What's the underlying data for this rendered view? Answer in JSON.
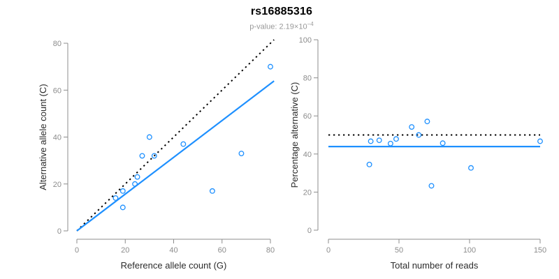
{
  "header": {
    "title": "rs16885316",
    "p_label": "p-value: 2.19×10",
    "p_exponent": "−4"
  },
  "colors": {
    "point": "#1E90FF",
    "fit_line": "#1E90FF",
    "reference_line": "#000000",
    "axis": "#8c8c8c",
    "tick_label": "#8c8c8c",
    "axis_title": "#2b2b2b",
    "title": "#000000",
    "subtitle": "#999999"
  },
  "chart_data": [
    {
      "type": "scatter",
      "name": "allele-counts-scatter",
      "xlabel": "Reference allele count (G)",
      "ylabel": "Alternative allele count (C)",
      "xlim": [
        0,
        80
      ],
      "ylim": [
        0,
        80
      ],
      "x_ticks": [
        0,
        20,
        40,
        60,
        80
      ],
      "y_ticks": [
        0,
        20,
        40,
        60,
        80
      ],
      "grid": false,
      "points": [
        [
          80,
          70
        ],
        [
          30,
          40
        ],
        [
          44,
          37
        ],
        [
          27,
          32
        ],
        [
          32,
          32
        ],
        [
          68,
          33
        ],
        [
          56,
          17
        ],
        [
          25,
          23
        ],
        [
          24,
          20
        ],
        [
          19,
          17
        ],
        [
          16,
          14
        ],
        [
          19,
          10
        ]
      ],
      "lines": [
        {
          "name": "identity-line",
          "style": "dotted",
          "color": "#000000",
          "from": [
            0,
            0
          ],
          "to": [
            81.5,
            81.5
          ]
        },
        {
          "name": "fit-line",
          "style": "solid",
          "color": "#1E90FF",
          "from": [
            0,
            0
          ],
          "to": [
            81.5,
            63.9
          ]
        }
      ]
    },
    {
      "type": "scatter",
      "name": "percentage-vs-coverage-scatter",
      "xlabel": "Total number of reads",
      "ylabel": "Percentage alternative (C)",
      "xlim": [
        0,
        150
      ],
      "ylim": [
        0,
        100
      ],
      "x_ticks": [
        0,
        50,
        100,
        150
      ],
      "y_ticks": [
        0,
        20,
        40,
        60,
        80,
        100
      ],
      "grid": false,
      "points": [
        [
          150,
          46.7
        ],
        [
          70,
          57.1
        ],
        [
          81,
          45.7
        ],
        [
          59,
          54.2
        ],
        [
          64,
          50.0
        ],
        [
          101,
          32.7
        ],
        [
          73,
          23.3
        ],
        [
          48,
          47.9
        ],
        [
          44,
          45.5
        ],
        [
          36,
          47.2
        ],
        [
          30,
          46.7
        ],
        [
          29,
          34.5
        ]
      ],
      "lines": [
        {
          "name": "fifty-percent-line",
          "style": "dotted",
          "color": "#000000",
          "from": [
            0,
            50
          ],
          "to": [
            150,
            50
          ]
        },
        {
          "name": "mean-percentage-line",
          "style": "solid",
          "color": "#1E90FF",
          "from": [
            0,
            43.9
          ],
          "to": [
            150,
            43.9
          ]
        }
      ]
    }
  ]
}
